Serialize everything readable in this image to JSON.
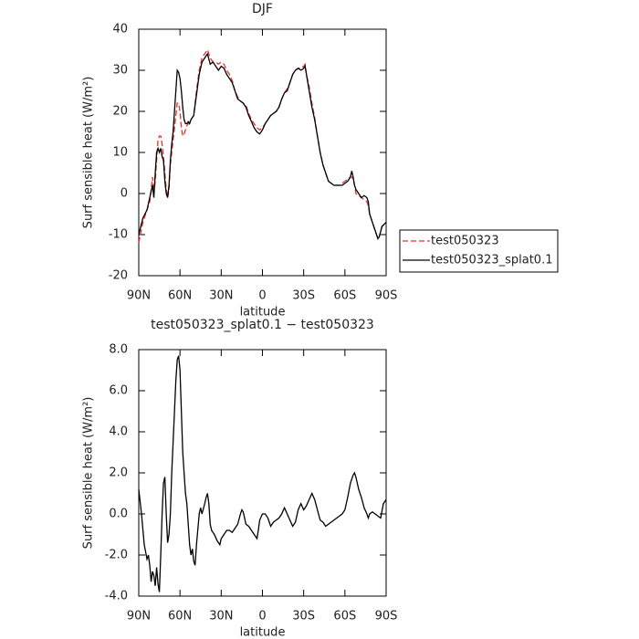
{
  "chart_data": [
    {
      "type": "line",
      "title": "DJF",
      "xlabel": "latitude",
      "ylabel": "Surf sensible heat (W/m²)",
      "xlim": [
        90,
        -90
      ],
      "xticks": [
        {
          "value": 90,
          "label": "90N"
        },
        {
          "value": 60,
          "label": "60N"
        },
        {
          "value": 30,
          "label": "30N"
        },
        0,
        {
          "value": -30,
          "label": "30S"
        },
        {
          "value": -60,
          "label": "60S"
        },
        {
          "value": -90,
          "label": "90S"
        }
      ],
      "ylim": [
        -20,
        40
      ],
      "yticks": [
        -20,
        -10,
        0,
        10,
        20,
        30,
        40
      ],
      "legend": "right",
      "x": [
        90,
        87,
        84,
        82,
        80,
        79,
        78,
        77,
        76,
        75,
        74,
        73,
        72,
        71,
        70,
        69,
        68,
        67,
        66,
        65,
        64,
        63,
        62,
        61,
        60,
        59,
        58,
        57,
        56,
        55,
        54,
        53,
        52,
        50,
        48,
        46,
        44,
        42,
        40,
        38,
        36,
        34,
        32,
        30,
        28,
        26,
        24,
        22,
        20,
        18,
        16,
        14,
        12,
        10,
        8,
        6,
        4,
        2,
        0,
        -2,
        -4,
        -6,
        -8,
        -10,
        -12,
        -14,
        -16,
        -18,
        -20,
        -22,
        -24,
        -26,
        -28,
        -30,
        -31,
        -32,
        -34,
        -36,
        -38,
        -40,
        -42,
        -44,
        -46,
        -48,
        -50,
        -52,
        -54,
        -56,
        -58,
        -60,
        -62,
        -64,
        -65,
        -66,
        -67,
        -68,
        -70,
        -72,
        -74,
        -76,
        -77,
        -78,
        -80,
        -82,
        -84,
        -85,
        -87,
        -90
      ],
      "series": [
        {
          "name": "test050323",
          "color": "#e8312f",
          "dash": true,
          "values": [
            -12,
            -7,
            -4,
            -2,
            4,
            0,
            3,
            8,
            13,
            14,
            14,
            12,
            9,
            5,
            1,
            -1,
            1,
            7,
            10,
            13,
            16,
            19,
            22,
            22,
            20,
            16,
            14,
            14.5,
            15.5,
            16.5,
            17,
            17.5,
            18,
            19,
            25,
            30,
            33,
            34,
            35,
            33,
            32,
            32,
            31.5,
            32,
            31.5,
            30,
            29,
            27.5,
            25,
            23.5,
            22.5,
            22,
            21.5,
            19.5,
            18,
            17,
            16,
            15.5,
            16,
            17,
            18,
            19,
            19.5,
            20,
            21,
            23,
            24.5,
            25.5,
            27,
            29,
            30,
            30.5,
            30.5,
            31,
            31.5,
            29,
            26,
            22,
            18.5,
            14,
            10,
            7,
            5,
            3,
            2.5,
            2,
            2,
            2,
            2.5,
            3,
            3.5,
            4,
            4,
            3.5,
            2,
            0,
            -0.5,
            -1,
            -1.5,
            -2,
            -3,
            -5,
            -7,
            -9,
            -11,
            -10.5,
            -8,
            -7.5
          ]
        },
        {
          "name": "test050323_splat0.1",
          "color": "#000000",
          "dash": false,
          "values": [
            -10,
            -6,
            -4,
            -1,
            2,
            -1,
            5,
            10,
            11,
            10,
            11,
            9,
            8,
            3,
            0,
            -1,
            2,
            8,
            12,
            15,
            20,
            25,
            30,
            29.5,
            28,
            25,
            21,
            18,
            17,
            17,
            17.5,
            17,
            18,
            19,
            24,
            29,
            32,
            33,
            34,
            31.5,
            32,
            31,
            30,
            31,
            30.5,
            29,
            28,
            27,
            25,
            23,
            22.5,
            22,
            21,
            19,
            17.5,
            16,
            15,
            14.5,
            15.5,
            17,
            18,
            19,
            19.5,
            20,
            21,
            23,
            24.5,
            25,
            27,
            29,
            30,
            30.5,
            30,
            30.5,
            31,
            29,
            25,
            21,
            18,
            14,
            10,
            7,
            5,
            3,
            2.5,
            2,
            2,
            2,
            2,
            2.5,
            3,
            4,
            5.5,
            4,
            2,
            1,
            0,
            -1,
            -0.5,
            -1,
            -2,
            -5,
            -7,
            -9,
            -11,
            -10.5,
            -8,
            -7
          ]
        }
      ]
    },
    {
      "type": "line",
      "title": "test050323_splat0.1 − test050323",
      "xlabel": "latitude",
      "ylabel": "Surf sensible heat (W/m²)",
      "xlim": [
        90,
        -90
      ],
      "xticks": [
        {
          "value": 90,
          "label": "90N"
        },
        {
          "value": 60,
          "label": "60N"
        },
        {
          "value": 30,
          "label": "30N"
        },
        0,
        {
          "value": -30,
          "label": "30S"
        },
        {
          "value": -60,
          "label": "60S"
        },
        {
          "value": -90,
          "label": "90S"
        }
      ],
      "ylim": [
        -4,
        8
      ],
      "yticks": [
        {
          "value": -4,
          "label": "-4.0"
        },
        {
          "value": -2,
          "label": "-2.0"
        },
        {
          "value": 0,
          "label": "0.0"
        },
        {
          "value": 2,
          "label": "2.0"
        },
        {
          "value": 4,
          "label": "4.0"
        },
        {
          "value": 6,
          "label": "6.0"
        },
        {
          "value": 8,
          "label": "8.0"
        }
      ],
      "color": "#000000",
      "x": [
        90,
        88,
        86,
        84,
        83,
        82,
        81,
        80,
        79,
        78,
        77,
        76,
        75,
        74,
        73,
        72,
        71,
        70,
        69,
        68,
        67,
        66,
        65,
        64,
        63,
        62,
        61,
        60,
        59,
        58,
        57,
        56,
        55,
        54,
        53,
        52,
        51,
        50,
        49,
        48,
        46,
        45,
        44,
        42,
        41,
        40,
        39,
        38,
        37,
        35,
        33,
        31,
        30,
        28,
        26,
        24,
        22,
        20,
        18,
        16,
        15,
        14,
        12,
        10,
        8,
        6,
        4,
        3,
        2,
        0,
        -2,
        -4,
        -6,
        -8,
        -10,
        -12,
        -14,
        -16,
        -18,
        -20,
        -22,
        -24,
        -26,
        -28,
        -30,
        -32,
        -34,
        -36,
        -38,
        -40,
        -42,
        -44,
        -46,
        -48,
        -50,
        -52,
        -54,
        -56,
        -58,
        -60,
        -62,
        -64,
        -66,
        -67,
        -68,
        -70,
        -72,
        -74,
        -76,
        -77,
        -78,
        -80,
        -82,
        -84,
        -86,
        -88,
        -90
      ],
      "values": [
        1.2,
        0,
        -1.5,
        -2.2,
        -2,
        -2.5,
        -3.3,
        -2.8,
        -3,
        -3.5,
        -2.6,
        -3.4,
        -3.8,
        -2,
        0,
        1.5,
        1.8,
        0,
        -1.4,
        -1,
        0,
        2,
        3.5,
        5,
        6.5,
        7.5,
        7.7,
        7,
        5,
        3,
        2,
        1,
        0.5,
        -0.5,
        -1.5,
        -2,
        -1.7,
        -2.3,
        -2.5,
        -1.5,
        0,
        0.3,
        0,
        0.5,
        0.8,
        1,
        0.5,
        -0.5,
        -0.8,
        -1,
        -1.3,
        -1.5,
        -1.2,
        -1,
        -0.8,
        -0.8,
        -0.9,
        -0.7,
        -0.5,
        0,
        0.2,
        0.1,
        -0.5,
        -0.6,
        -0.8,
        -1,
        -1.2,
        -0.8,
        -0.3,
        0,
        0,
        -0.2,
        -0.6,
        -0.4,
        -0.3,
        -0.2,
        0,
        0.3,
        0,
        -0.3,
        -0.6,
        -0.4,
        0.2,
        0.5,
        0.2,
        0.4,
        0.7,
        1,
        0.7,
        0.2,
        -0.3,
        -0.4,
        -0.6,
        -0.5,
        -0.4,
        -0.3,
        -0.2,
        -0.1,
        0,
        0.2,
        0.8,
        1.5,
        1.9,
        2,
        1.8,
        1.2,
        0.8,
        0.3,
        0,
        -0.2,
        0,
        0.1,
        0,
        -0.1,
        -0.2,
        0.5,
        0.7
      ]
    }
  ]
}
